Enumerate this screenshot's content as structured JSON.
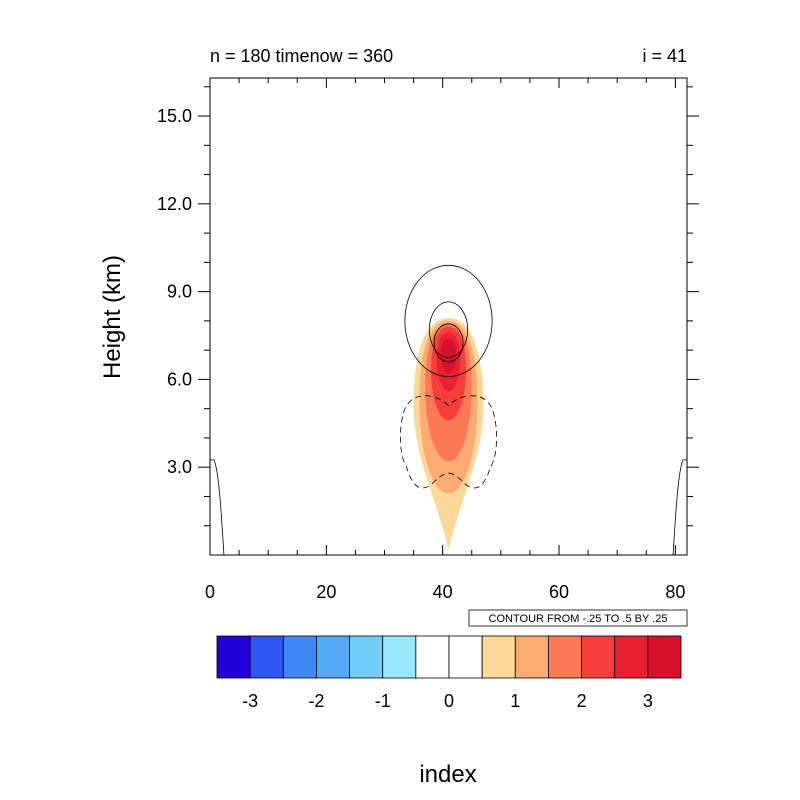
{
  "chart_data": {
    "type": "contour",
    "title_left": "n = 180 timenow = 360",
    "title_right": "i = 41",
    "xlabel": "index",
    "ylabel": "Height (km)",
    "xlim": [
      0,
      82
    ],
    "ylim": [
      0,
      16.3
    ],
    "xticks": [
      0,
      20,
      40,
      60,
      80
    ],
    "xtick_labels": [
      "0",
      "20",
      "40",
      "60",
      "80"
    ],
    "yticks": [
      3.0,
      6.0,
      9.0,
      12.0,
      15.0
    ],
    "ytick_labels": [
      "3.0",
      "6.0",
      "9.0",
      "12.0",
      "15.0"
    ],
    "contour_info": "CONTOUR FROM -.25 TO .5 BY .25",
    "colorbar": {
      "colors": [
        "#2200d8",
        "#2c55f4",
        "#3f87f4",
        "#55aaf6",
        "#6fcdf8",
        "#9ae8fb",
        "#ffffff",
        "#ffffff",
        "#fed898",
        "#fdab73",
        "#fb7a55",
        "#f63f3c",
        "#e82030",
        "#d4122c"
      ],
      "tick_values": [
        -3,
        -2,
        -1,
        0,
        1,
        2,
        3
      ],
      "tick_labels": [
        "-3",
        "-2",
        "-1",
        "0",
        "1",
        "2",
        "3"
      ]
    },
    "filled_levels": [
      {
        "level": 1,
        "color": "#fed898",
        "center": [
          41,
          4.5
        ]
      },
      {
        "level": 1.5,
        "color": "#fdab73",
        "center": [
          41,
          5.0
        ]
      },
      {
        "level": 2,
        "color": "#fb7a55",
        "center": [
          41,
          5.5
        ]
      },
      {
        "level": 2.5,
        "color": "#f63f3c",
        "center": [
          41,
          6.2
        ]
      },
      {
        "level": 3,
        "color": "#e82030",
        "center": [
          41,
          6.7
        ]
      },
      {
        "level": 3.5,
        "color": "#d4122c",
        "center": [
          41,
          6.9
        ]
      }
    ],
    "line_contours": [
      {
        "style": "solid",
        "center": [
          41,
          8.0
        ],
        "rx": 7.5,
        "ry": 1.9
      },
      {
        "style": "solid",
        "center": [
          41,
          7.7
        ],
        "rx": 3.3,
        "ry": 0.95
      },
      {
        "style": "solid",
        "center": [
          41,
          7.25
        ],
        "rx": 2.5,
        "ry": 0.65
      },
      {
        "style": "dashed",
        "center": [
          41,
          4.0
        ],
        "rx": 8.5,
        "ry": 1.6
      }
    ]
  }
}
